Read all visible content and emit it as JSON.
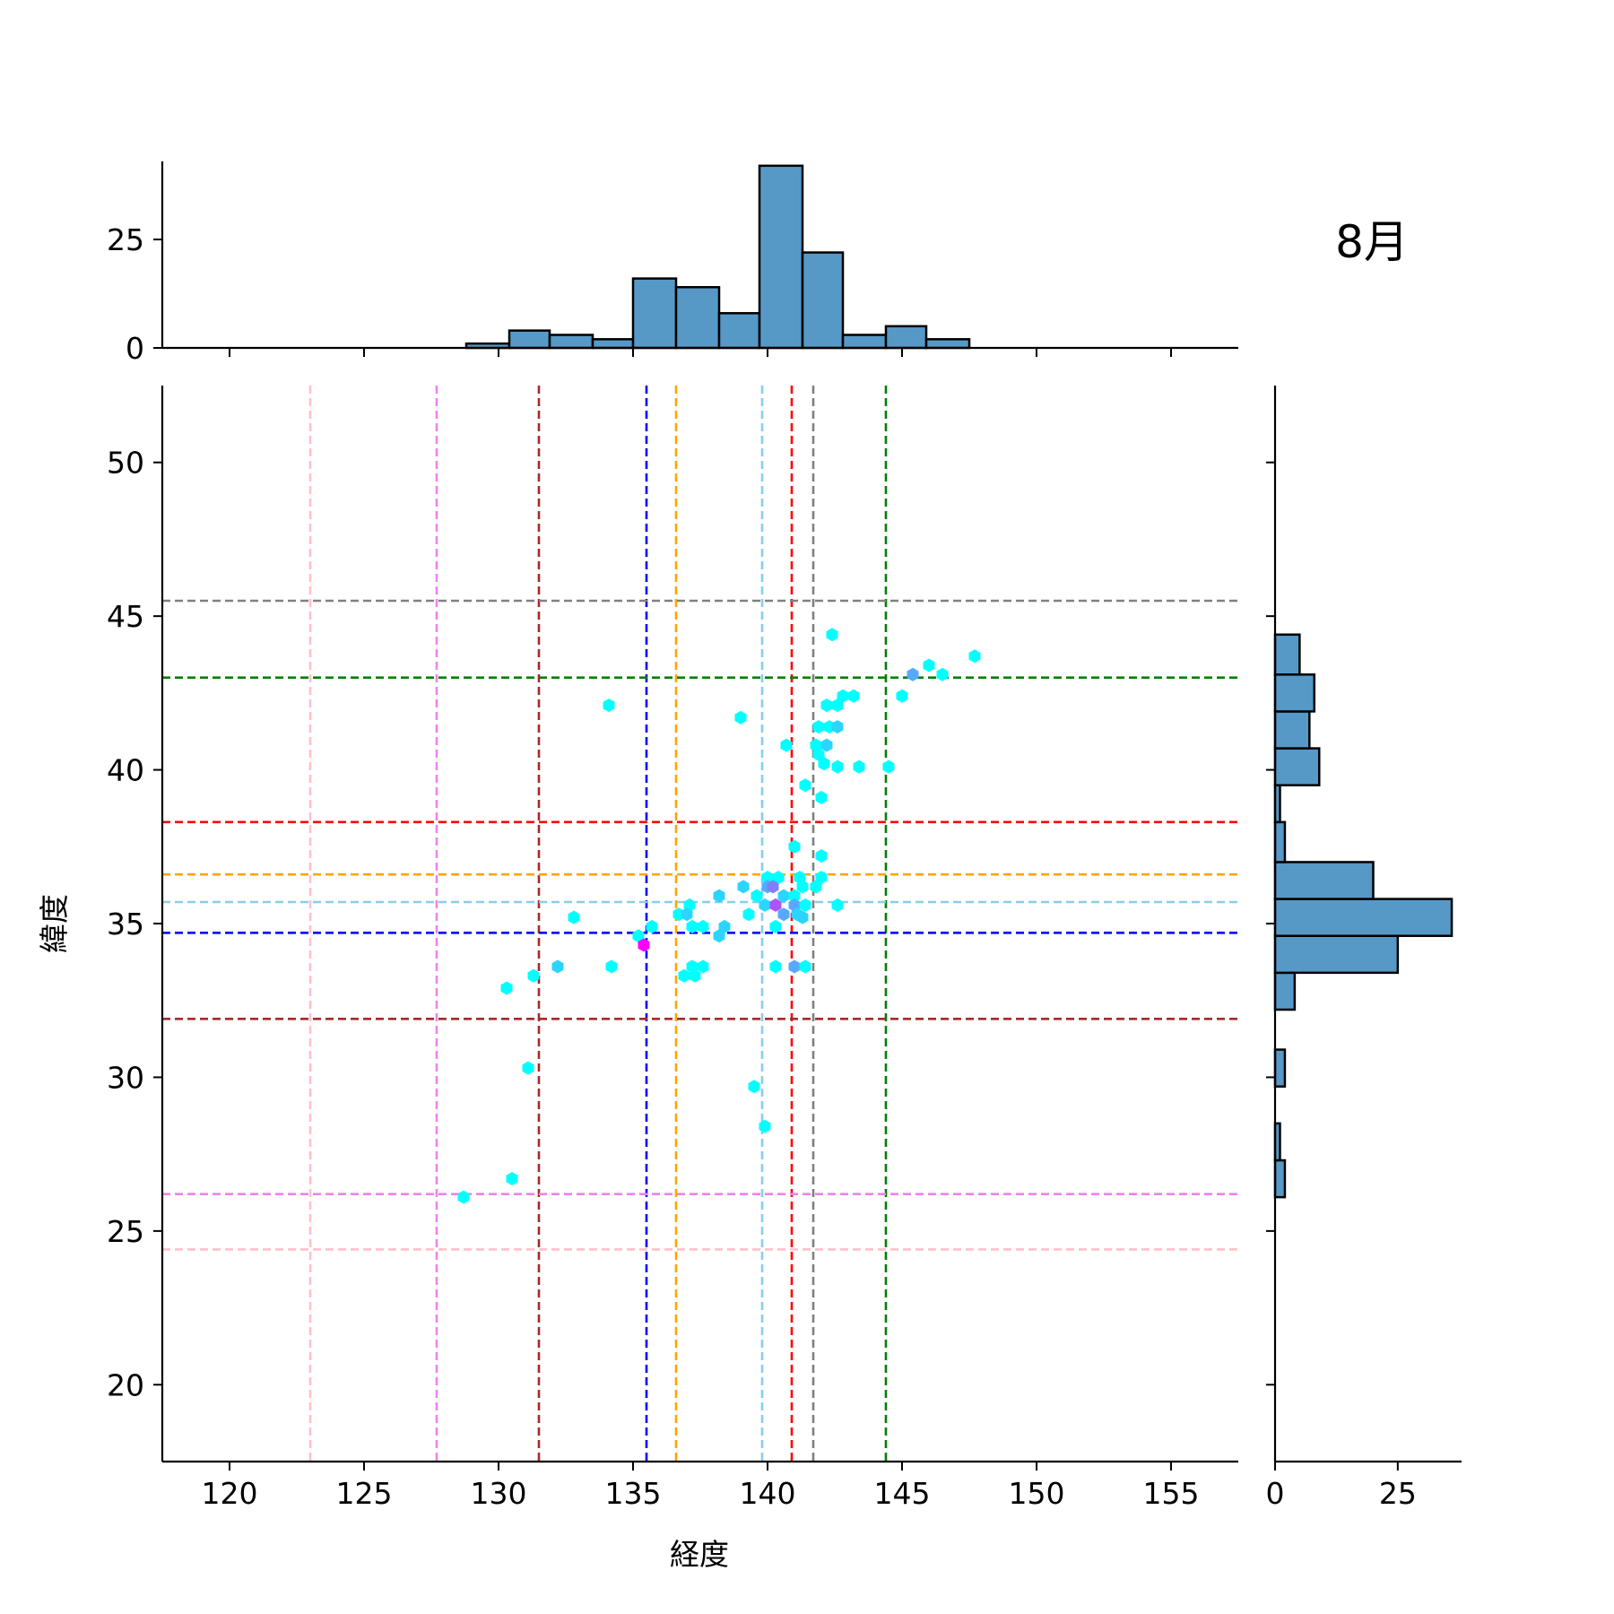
{
  "chart_data": {
    "type": "hexbin-joint",
    "title": "8月",
    "xlabel": "経度",
    "ylabel": "緯度",
    "xlim": [
      117.5,
      157.5
    ],
    "ylim": [
      17.5,
      52.5
    ],
    "xticks": [
      120,
      125,
      130,
      135,
      140,
      145,
      150,
      155
    ],
    "yticks": [
      20,
      25,
      30,
      35,
      40,
      45,
      50
    ],
    "grid": false,
    "vlines": [
      {
        "x": 123.0,
        "color": "#ffc0cb"
      },
      {
        "x": 127.7,
        "color": "#ee82ee"
      },
      {
        "x": 131.5,
        "color": "#a52a2a"
      },
      {
        "x": 135.5,
        "color": "#0000ff"
      },
      {
        "x": 136.6,
        "color": "#ffa500"
      },
      {
        "x": 139.8,
        "color": "#87ceeb"
      },
      {
        "x": 140.9,
        "color": "#ff0000"
      },
      {
        "x": 141.7,
        "color": "#808080"
      },
      {
        "x": 144.4,
        "color": "#008000"
      }
    ],
    "hlines": [
      {
        "y": 45.5,
        "color": "#808080"
      },
      {
        "y": 43.0,
        "color": "#008000"
      },
      {
        "y": 38.3,
        "color": "#ff0000"
      },
      {
        "y": 36.6,
        "color": "#ffa500"
      },
      {
        "y": 35.7,
        "color": "#87ceeb"
      },
      {
        "y": 34.7,
        "color": "#0000ff"
      },
      {
        "y": 31.9,
        "color": "#a52a2a"
      },
      {
        "y": 26.2,
        "color": "#ee82ee"
      },
      {
        "y": 24.4,
        "color": "#ffc0cb"
      }
    ],
    "hexbins": [
      {
        "x": 142.4,
        "y": 44.4,
        "count": 1
      },
      {
        "x": 147.7,
        "y": 43.7,
        "count": 1
      },
      {
        "x": 146.0,
        "y": 43.4,
        "count": 1
      },
      {
        "x": 145.4,
        "y": 43.1,
        "count": 3
      },
      {
        "x": 146.5,
        "y": 43.1,
        "count": 1
      },
      {
        "x": 145.0,
        "y": 42.4,
        "count": 1
      },
      {
        "x": 142.8,
        "y": 42.4,
        "count": 1
      },
      {
        "x": 143.2,
        "y": 42.4,
        "count": 1
      },
      {
        "x": 134.1,
        "y": 42.1,
        "count": 1
      },
      {
        "x": 142.2,
        "y": 42.1,
        "count": 1
      },
      {
        "x": 142.6,
        "y": 42.1,
        "count": 1
      },
      {
        "x": 139.0,
        "y": 41.7,
        "count": 1
      },
      {
        "x": 141.9,
        "y": 41.4,
        "count": 1
      },
      {
        "x": 142.3,
        "y": 41.4,
        "count": 1
      },
      {
        "x": 142.6,
        "y": 41.4,
        "count": 2
      },
      {
        "x": 140.7,
        "y": 40.8,
        "count": 1
      },
      {
        "x": 141.8,
        "y": 40.8,
        "count": 1
      },
      {
        "x": 142.2,
        "y": 40.8,
        "count": 2
      },
      {
        "x": 141.9,
        "y": 40.5,
        "count": 1
      },
      {
        "x": 142.1,
        "y": 40.2,
        "count": 1
      },
      {
        "x": 142.6,
        "y": 40.1,
        "count": 1
      },
      {
        "x": 143.4,
        "y": 40.1,
        "count": 1
      },
      {
        "x": 144.5,
        "y": 40.1,
        "count": 1
      },
      {
        "x": 141.4,
        "y": 39.5,
        "count": 1
      },
      {
        "x": 142.0,
        "y": 39.1,
        "count": 1
      },
      {
        "x": 141.0,
        "y": 37.5,
        "count": 1
      },
      {
        "x": 142.0,
        "y": 37.2,
        "count": 1
      },
      {
        "x": 140.0,
        "y": 36.5,
        "count": 1
      },
      {
        "x": 140.4,
        "y": 36.5,
        "count": 1
      },
      {
        "x": 141.2,
        "y": 36.5,
        "count": 1
      },
      {
        "x": 142.0,
        "y": 36.5,
        "count": 1
      },
      {
        "x": 139.1,
        "y": 36.2,
        "count": 2
      },
      {
        "x": 140.0,
        "y": 36.2,
        "count": 3
      },
      {
        "x": 140.2,
        "y": 36.2,
        "count": 4
      },
      {
        "x": 141.3,
        "y": 36.2,
        "count": 1
      },
      {
        "x": 141.8,
        "y": 36.2,
        "count": 1
      },
      {
        "x": 138.2,
        "y": 35.9,
        "count": 2
      },
      {
        "x": 139.6,
        "y": 35.9,
        "count": 1
      },
      {
        "x": 140.6,
        "y": 35.9,
        "count": 2
      },
      {
        "x": 141.0,
        "y": 35.9,
        "count": 1
      },
      {
        "x": 139.9,
        "y": 35.6,
        "count": 2
      },
      {
        "x": 140.3,
        "y": 35.6,
        "count": 5
      },
      {
        "x": 141.0,
        "y": 35.6,
        "count": 3
      },
      {
        "x": 141.4,
        "y": 35.6,
        "count": 1
      },
      {
        "x": 142.6,
        "y": 35.6,
        "count": 1
      },
      {
        "x": 137.1,
        "y": 35.6,
        "count": 1
      },
      {
        "x": 136.7,
        "y": 35.3,
        "count": 1
      },
      {
        "x": 137.0,
        "y": 35.3,
        "count": 2
      },
      {
        "x": 139.3,
        "y": 35.3,
        "count": 1
      },
      {
        "x": 140.6,
        "y": 35.3,
        "count": 3
      },
      {
        "x": 141.1,
        "y": 35.3,
        "count": 2
      },
      {
        "x": 132.8,
        "y": 35.2,
        "count": 1
      },
      {
        "x": 141.3,
        "y": 35.2,
        "count": 2
      },
      {
        "x": 135.7,
        "y": 34.9,
        "count": 1
      },
      {
        "x": 137.2,
        "y": 34.9,
        "count": 1
      },
      {
        "x": 137.6,
        "y": 34.9,
        "count": 1
      },
      {
        "x": 138.4,
        "y": 34.9,
        "count": 2
      },
      {
        "x": 140.3,
        "y": 34.9,
        "count": 1
      },
      {
        "x": 135.2,
        "y": 34.6,
        "count": 1
      },
      {
        "x": 138.2,
        "y": 34.6,
        "count": 2
      },
      {
        "x": 135.4,
        "y": 34.3,
        "count": 7
      },
      {
        "x": 134.2,
        "y": 33.6,
        "count": 1
      },
      {
        "x": 132.2,
        "y": 33.6,
        "count": 2
      },
      {
        "x": 137.2,
        "y": 33.6,
        "count": 1
      },
      {
        "x": 137.6,
        "y": 33.6,
        "count": 1
      },
      {
        "x": 140.3,
        "y": 33.6,
        "count": 1
      },
      {
        "x": 141.0,
        "y": 33.6,
        "count": 3
      },
      {
        "x": 141.4,
        "y": 33.6,
        "count": 1
      },
      {
        "x": 131.3,
        "y": 33.3,
        "count": 1
      },
      {
        "x": 136.9,
        "y": 33.3,
        "count": 1
      },
      {
        "x": 137.3,
        "y": 33.3,
        "count": 1
      },
      {
        "x": 130.3,
        "y": 32.9,
        "count": 1
      },
      {
        "x": 131.1,
        "y": 30.3,
        "count": 1
      },
      {
        "x": 139.5,
        "y": 29.7,
        "count": 1
      },
      {
        "x": 139.9,
        "y": 28.4,
        "count": 1
      },
      {
        "x": 130.5,
        "y": 26.7,
        "count": 1
      },
      {
        "x": 128.7,
        "y": 26.1,
        "count": 1
      }
    ],
    "marginal_x": {
      "ylim": [
        0,
        43
      ],
      "yticks": [
        0,
        25
      ],
      "bin_edges": [
        128.8,
        130.4,
        131.9,
        133.5,
        135.0,
        136.6,
        138.2,
        139.7,
        141.3,
        142.8,
        144.4,
        145.9,
        147.5
      ],
      "counts": [
        1,
        4,
        3,
        2,
        16,
        14,
        8,
        42,
        22,
        3,
        5,
        2
      ]
    },
    "marginal_y": {
      "xlim": [
        0,
        38
      ],
      "xticks": [
        0,
        25
      ],
      "bin_edges": [
        26.1,
        27.3,
        28.5,
        29.7,
        30.9,
        32.2,
        33.4,
        34.6,
        35.8,
        37.0,
        38.3,
        39.5,
        40.7,
        41.9,
        43.1,
        44.4
      ],
      "counts": [
        2,
        1,
        0,
        2,
        0,
        4,
        25,
        36,
        20,
        2,
        1,
        9,
        7,
        8,
        5
      ]
    }
  }
}
